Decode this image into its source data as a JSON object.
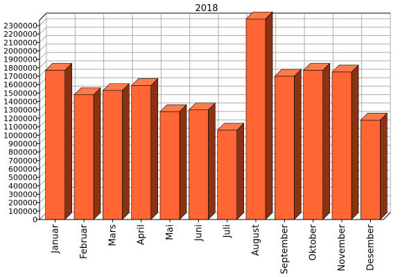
{
  "chart_data": {
    "type": "bar",
    "title": "2018",
    "xlabel": "",
    "ylabel": "",
    "categories": [
      "Januar",
      "Februar",
      "Mars",
      "April",
      "Mai",
      "Juni",
      "Juli",
      "August",
      "September",
      "Oktober",
      "November",
      "Desember"
    ],
    "values": [
      1770000,
      1480000,
      1530000,
      1590000,
      1280000,
      1300000,
      1060000,
      2380000,
      1700000,
      1770000,
      1750000,
      1180000
    ],
    "ylim": [
      0,
      2300000
    ],
    "ytick_step": 100000,
    "ytick_labels": [
      "0",
      "100000",
      "200000",
      "300000",
      "400000",
      "500000",
      "600000",
      "700000",
      "800000",
      "900000",
      "1000000",
      "1100000",
      "1200000",
      "1300000",
      "1400000",
      "1500000",
      "1600000",
      "1700000",
      "1800000",
      "1900000",
      "2000000",
      "2100000",
      "2200000",
      "2300000"
    ],
    "grid": true,
    "legend": "none",
    "colors": {
      "bar_front": "#ff6633",
      "bar_top": "#ff7a4d",
      "bar_side": "#8b3212",
      "grid": "#aaaaaa",
      "wall": "#ffffff"
    }
  }
}
